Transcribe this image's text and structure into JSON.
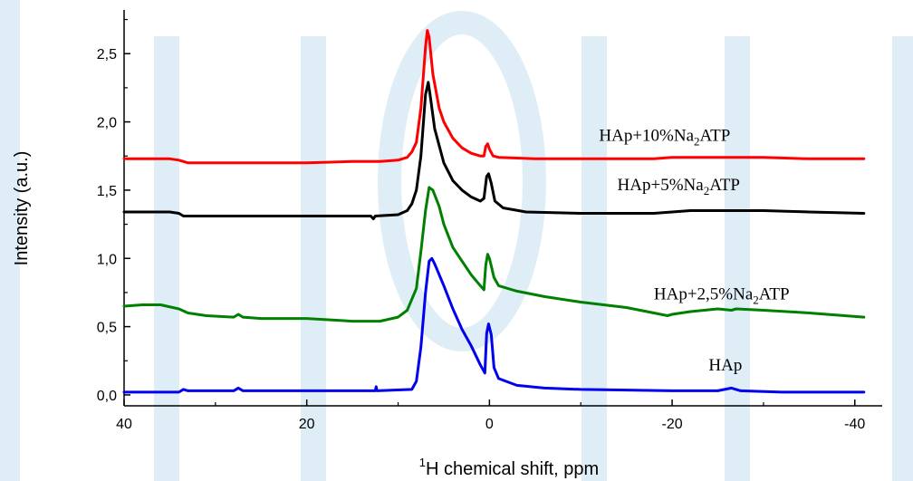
{
  "chart_data": {
    "type": "line",
    "xlabel_sup": "1",
    "xlabel": "H chemical shift, ppm",
    "ylabel": "Intensity (a.u.)",
    "xlim": [
      40,
      -43
    ],
    "ylim": [
      -0.08,
      2.82
    ],
    "x_ticks": [
      {
        "value": 40,
        "label": "40"
      },
      {
        "value": 20,
        "label": "20"
      },
      {
        "value": 0,
        "label": "0"
      },
      {
        "value": -20,
        "label": "-20"
      },
      {
        "value": -40,
        "label": "-40"
      }
    ],
    "y_ticks": [
      {
        "value": 0.0,
        "label": "0,0"
      },
      {
        "value": 0.5,
        "label": "0,5"
      },
      {
        "value": 1.0,
        "label": "1,0"
      },
      {
        "value": 1.5,
        "label": "1,5"
      },
      {
        "value": 2.0,
        "label": "2,0"
      },
      {
        "value": 2.5,
        "label": "2,5"
      }
    ],
    "grid": false,
    "series": [
      {
        "name": "HAp",
        "label_parts": [
          "HAp"
        ],
        "color": "#0000ee",
        "points": [
          [
            40,
            0.02
          ],
          [
            34,
            0.02
          ],
          [
            33.5,
            0.04
          ],
          [
            33,
            0.03
          ],
          [
            28,
            0.03
          ],
          [
            27.5,
            0.05
          ],
          [
            27,
            0.03
          ],
          [
            20,
            0.03
          ],
          [
            12.5,
            0.03
          ],
          [
            12.4,
            0.06
          ],
          [
            12.3,
            0.03
          ],
          [
            8.5,
            0.04
          ],
          [
            8,
            0.1
          ],
          [
            7.5,
            0.35
          ],
          [
            7,
            0.75
          ],
          [
            6.6,
            0.98
          ],
          [
            6.3,
            1.0
          ],
          [
            6,
            0.96
          ],
          [
            5,
            0.8
          ],
          [
            4,
            0.63
          ],
          [
            3,
            0.48
          ],
          [
            2,
            0.36
          ],
          [
            1,
            0.22
          ],
          [
            0.5,
            0.16
          ],
          [
            0.3,
            0.45
          ],
          [
            0.1,
            0.52
          ],
          [
            -0.2,
            0.44
          ],
          [
            -0.5,
            0.2
          ],
          [
            -1,
            0.12
          ],
          [
            -3,
            0.07
          ],
          [
            -6,
            0.05
          ],
          [
            -10,
            0.04
          ],
          [
            -20,
            0.03
          ],
          [
            -25,
            0.03
          ],
          [
            -26.5,
            0.05
          ],
          [
            -27.5,
            0.03
          ],
          [
            -32,
            0.02
          ],
          [
            -41,
            0.02
          ]
        ]
      },
      {
        "name": "HAp+2,5%Na2ATP",
        "label_parts": [
          "HAp+2,5%Na",
          "2",
          "ATP"
        ],
        "color": "#008000",
        "points": [
          [
            40,
            0.65
          ],
          [
            38,
            0.66
          ],
          [
            36,
            0.66
          ],
          [
            34,
            0.63
          ],
          [
            33,
            0.6
          ],
          [
            31,
            0.58
          ],
          [
            28,
            0.57
          ],
          [
            27.5,
            0.59
          ],
          [
            27,
            0.57
          ],
          [
            25,
            0.56
          ],
          [
            20,
            0.56
          ],
          [
            15,
            0.54
          ],
          [
            12,
            0.54
          ],
          [
            10,
            0.57
          ],
          [
            9,
            0.62
          ],
          [
            8,
            0.78
          ],
          [
            7.5,
            1.05
          ],
          [
            7,
            1.35
          ],
          [
            6.6,
            1.52
          ],
          [
            6.2,
            1.5
          ],
          [
            5.5,
            1.38
          ],
          [
            5,
            1.25
          ],
          [
            4,
            1.08
          ],
          [
            3,
            0.98
          ],
          [
            2,
            0.88
          ],
          [
            1,
            0.8
          ],
          [
            0.6,
            0.77
          ],
          [
            0.4,
            0.95
          ],
          [
            0.2,
            1.03
          ],
          [
            0,
            1.0
          ],
          [
            -0.5,
            0.86
          ],
          [
            -1,
            0.8
          ],
          [
            -3,
            0.76
          ],
          [
            -6,
            0.72
          ],
          [
            -10,
            0.68
          ],
          [
            -15,
            0.64
          ],
          [
            -18,
            0.6
          ],
          [
            -19.5,
            0.58
          ],
          [
            -20,
            0.59
          ],
          [
            -22,
            0.61
          ],
          [
            -25,
            0.63
          ],
          [
            -26.5,
            0.62
          ],
          [
            -27,
            0.63
          ],
          [
            -30,
            0.62
          ],
          [
            -35,
            0.6
          ],
          [
            -41,
            0.57
          ]
        ]
      },
      {
        "name": "HAp+5%Na2ATP",
        "label_parts": [
          "HAp+5%Na",
          "2",
          "ATP"
        ],
        "color": "#000000",
        "points": [
          [
            40,
            1.34
          ],
          [
            35,
            1.34
          ],
          [
            34,
            1.33
          ],
          [
            33.5,
            1.31
          ],
          [
            33,
            1.31
          ],
          [
            28,
            1.31
          ],
          [
            20,
            1.31
          ],
          [
            13,
            1.31
          ],
          [
            12.7,
            1.29
          ],
          [
            12.5,
            1.31
          ],
          [
            10,
            1.32
          ],
          [
            9,
            1.35
          ],
          [
            8.5,
            1.4
          ],
          [
            8,
            1.5
          ],
          [
            7.5,
            1.75
          ],
          [
            7,
            2.2
          ],
          [
            6.7,
            2.29
          ],
          [
            6.5,
            2.2
          ],
          [
            6,
            1.95
          ],
          [
            5,
            1.7
          ],
          [
            4,
            1.57
          ],
          [
            3,
            1.5
          ],
          [
            2,
            1.45
          ],
          [
            1,
            1.42
          ],
          [
            0.6,
            1.44
          ],
          [
            0.3,
            1.6
          ],
          [
            0.1,
            1.62
          ],
          [
            -0.2,
            1.55
          ],
          [
            -0.6,
            1.42
          ],
          [
            -1.5,
            1.37
          ],
          [
            -4,
            1.34
          ],
          [
            -10,
            1.33
          ],
          [
            -18,
            1.33
          ],
          [
            -20,
            1.34
          ],
          [
            -22,
            1.35
          ],
          [
            -25,
            1.35
          ],
          [
            -30,
            1.35
          ],
          [
            -35,
            1.34
          ],
          [
            -41,
            1.33
          ]
        ]
      },
      {
        "name": "HAp+10%Na2ATP",
        "label_parts": [
          "HAp+10%Na",
          "2",
          "ATP"
        ],
        "color": "#ff0000",
        "points": [
          [
            40,
            1.73
          ],
          [
            35,
            1.73
          ],
          [
            34,
            1.72
          ],
          [
            33,
            1.7
          ],
          [
            28,
            1.7
          ],
          [
            20,
            1.7
          ],
          [
            15,
            1.71
          ],
          [
            12,
            1.71
          ],
          [
            10,
            1.72
          ],
          [
            9,
            1.74
          ],
          [
            8.5,
            1.78
          ],
          [
            8,
            1.85
          ],
          [
            7.5,
            2.1
          ],
          [
            7,
            2.55
          ],
          [
            6.8,
            2.67
          ],
          [
            6.6,
            2.62
          ],
          [
            6.2,
            2.35
          ],
          [
            5.5,
            2.1
          ],
          [
            5,
            2.0
          ],
          [
            4,
            1.88
          ],
          [
            3,
            1.81
          ],
          [
            2,
            1.77
          ],
          [
            1,
            1.75
          ],
          [
            0.6,
            1.75
          ],
          [
            0.4,
            1.82
          ],
          [
            0.2,
            1.84
          ],
          [
            0,
            1.8
          ],
          [
            -0.4,
            1.75
          ],
          [
            -1,
            1.74
          ],
          [
            -5,
            1.73
          ],
          [
            -10,
            1.73
          ],
          [
            -18,
            1.73
          ],
          [
            -20,
            1.74
          ],
          [
            -25,
            1.74
          ],
          [
            -30,
            1.74
          ],
          [
            -35,
            1.73
          ],
          [
            -41,
            1.73
          ]
        ]
      }
    ],
    "label_anchors": [
      {
        "series": 0,
        "x": -24,
        "y": 0.18
      },
      {
        "series": 1,
        "x": -18,
        "y": 0.7
      },
      {
        "series": 2,
        "x": -14,
        "y": 1.5
      },
      {
        "series": 3,
        "x": -12,
        "y": 1.86
      }
    ]
  }
}
